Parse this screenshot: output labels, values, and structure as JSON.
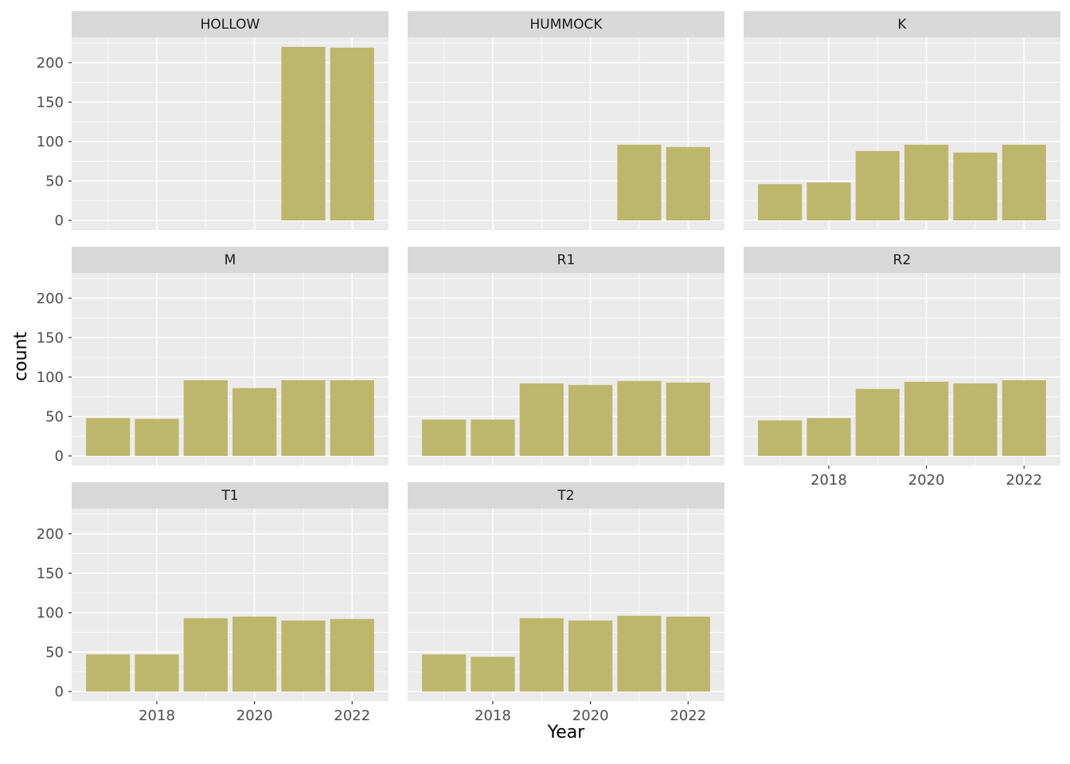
{
  "figure": {
    "colors": {
      "bar_fill": "#bdb76b",
      "panel_background": "#ebebeb",
      "strip_background": "#d9d9d9",
      "gridline": "#ffffff",
      "axis_text": "#4d4d4d",
      "tick_mark": "#333333"
    }
  },
  "chart_data": {
    "type": "bar",
    "title": "",
    "xlabel": "Year",
    "ylabel": "count",
    "faceted": true,
    "facet_columns": 3,
    "grid": true,
    "legend": "none",
    "x_ticks": [
      2018,
      2020,
      2022
    ],
    "x_minor_ticks": [
      2017,
      2019,
      2021
    ],
    "y_ticks": [
      0,
      50,
      100,
      150,
      200
    ],
    "y_minor_ticks": [
      25,
      75,
      125,
      175,
      225
    ],
    "xlim": [
      2016.255,
      2022.745
    ],
    "ylim": [
      0,
      232
    ],
    "bar_width": 0.9,
    "facets": [
      {
        "label": "HOLLOW",
        "x": [
          2021,
          2022
        ],
        "values": [
          220,
          219
        ]
      },
      {
        "label": "HUMMOCK",
        "x": [
          2021,
          2022
        ],
        "values": [
          96,
          93
        ]
      },
      {
        "label": "K",
        "x": [
          2017,
          2018,
          2019,
          2020,
          2021,
          2022
        ],
        "values": [
          46,
          48,
          88,
          96,
          86,
          96
        ]
      },
      {
        "label": "M",
        "x": [
          2017,
          2018,
          2019,
          2020,
          2021,
          2022
        ],
        "values": [
          48,
          47,
          96,
          86,
          96,
          96
        ]
      },
      {
        "label": "R1",
        "x": [
          2017,
          2018,
          2019,
          2020,
          2021,
          2022
        ],
        "values": [
          46,
          46,
          92,
          90,
          95,
          93
        ]
      },
      {
        "label": "R2",
        "x": [
          2017,
          2018,
          2019,
          2020,
          2021,
          2022
        ],
        "values": [
          45,
          48,
          85,
          94,
          92,
          96
        ]
      },
      {
        "label": "T1",
        "x": [
          2017,
          2018,
          2019,
          2020,
          2021,
          2022
        ],
        "values": [
          47,
          47,
          93,
          95,
          90,
          92
        ]
      },
      {
        "label": "T2",
        "x": [
          2017,
          2018,
          2019,
          2020,
          2021,
          2022
        ],
        "values": [
          47,
          44,
          93,
          90,
          96,
          95
        ]
      }
    ]
  }
}
